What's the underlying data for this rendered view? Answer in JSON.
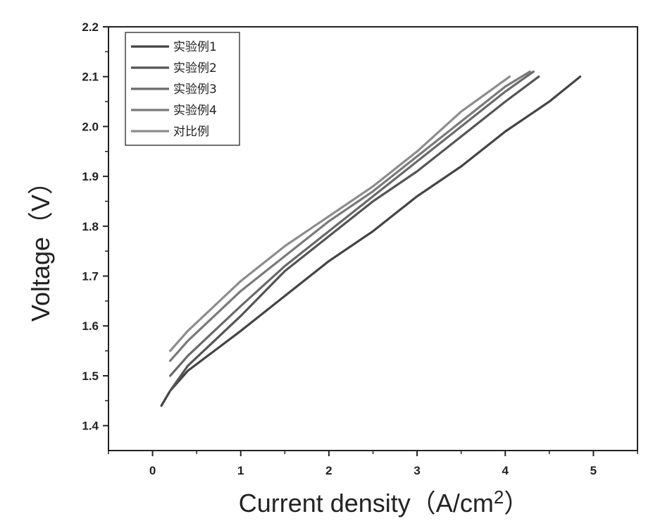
{
  "chart_data": {
    "type": "line",
    "xlabel": "Current density（A/cm2）",
    "xlabel_main": "Current density（A/cm",
    "xlabel_sup": "2",
    "xlabel_close": "）",
    "ylabel": "Voltage（V）",
    "xlim": [
      -0.5,
      5.5
    ],
    "ylim": [
      1.35,
      2.2
    ],
    "xticks": [
      0,
      1,
      2,
      3,
      4,
      5
    ],
    "xtick_labels": [
      "0",
      "1",
      "2",
      "3",
      "4",
      "5"
    ],
    "yticks": [
      1.4,
      1.5,
      1.6,
      1.7,
      1.8,
      1.9,
      2.0,
      2.1,
      2.2
    ],
    "ytick_labels": [
      "1.4",
      "1.5",
      "1.6",
      "1.7",
      "1.8",
      "1.9",
      "2.0",
      "2.1",
      "2.2"
    ],
    "grid": false,
    "legend_position": "top-left",
    "series": [
      {
        "name": "实验例1",
        "color": "#444444",
        "x": [
          0.1,
          0.2,
          0.4,
          0.7,
          1.0,
          1.5,
          2.0,
          2.5,
          3.0,
          3.5,
          4.0,
          4.5,
          4.85
        ],
        "y": [
          1.44,
          1.47,
          1.51,
          1.55,
          1.59,
          1.66,
          1.73,
          1.79,
          1.86,
          1.92,
          1.99,
          2.05,
          2.1
        ]
      },
      {
        "name": "实验例2",
        "color": "#555555",
        "x": [
          0.2,
          0.4,
          0.7,
          1.0,
          1.5,
          2.0,
          2.5,
          3.0,
          3.5,
          4.0,
          4.38
        ],
        "y": [
          1.47,
          1.52,
          1.57,
          1.62,
          1.71,
          1.78,
          1.85,
          1.91,
          1.98,
          2.05,
          2.1
        ]
      },
      {
        "name": "实验例3",
        "color": "#6a6a6a",
        "x": [
          0.2,
          0.4,
          0.7,
          1.0,
          1.5,
          2.0,
          2.5,
          3.0,
          3.5,
          4.0,
          4.32
        ],
        "y": [
          1.5,
          1.54,
          1.59,
          1.64,
          1.72,
          1.79,
          1.86,
          1.93,
          2.0,
          2.07,
          2.11
        ]
      },
      {
        "name": "实验例4",
        "color": "#7a7a7a",
        "x": [
          0.2,
          0.4,
          0.7,
          1.0,
          1.5,
          2.0,
          2.5,
          3.0,
          3.5,
          4.0,
          4.28
        ],
        "y": [
          1.53,
          1.57,
          1.62,
          1.67,
          1.74,
          1.81,
          1.87,
          1.94,
          2.01,
          2.08,
          2.11
        ]
      },
      {
        "name": "对比例",
        "color": "#8c8c8c",
        "x": [
          0.2,
          0.4,
          0.7,
          1.0,
          1.5,
          2.0,
          2.5,
          3.0,
          3.5,
          4.05
        ],
        "y": [
          1.55,
          1.59,
          1.64,
          1.69,
          1.76,
          1.82,
          1.88,
          1.95,
          2.03,
          2.1
        ]
      }
    ]
  }
}
